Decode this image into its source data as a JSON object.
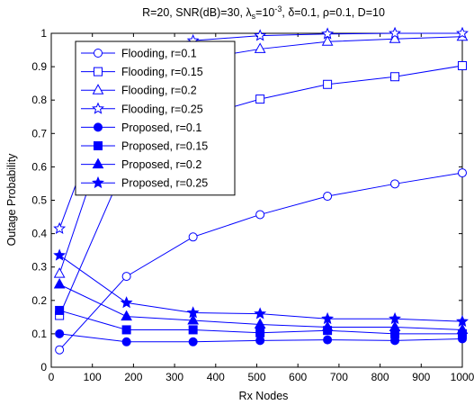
{
  "chart_data": {
    "type": "line",
    "title_parts": [
      "R=20, SNR(dB)=30, λ",
      "s",
      "=10",
      "-3",
      ", δ=0.1, ρ=0.1, D=10"
    ],
    "xlabel": "Rx Nodes",
    "ylabel": "Outage Probability",
    "xlim": [
      0,
      1000
    ],
    "ylim": [
      0,
      1
    ],
    "xticks": [
      0,
      100,
      200,
      300,
      400,
      500,
      600,
      700,
      800,
      900,
      1000
    ],
    "yticks": [
      0,
      0.1,
      0.2,
      0.3,
      0.4,
      0.5,
      0.6,
      0.7,
      0.8,
      0.9,
      1
    ],
    "grid": false,
    "legend_position": "top-left",
    "line_color": "#0000ff",
    "x": [
      20,
      183,
      345,
      508,
      672,
      836,
      1000
    ],
    "series": [
      {
        "name": "Flooding, r=0.1",
        "marker": "circle-open",
        "values": [
          0.052,
          0.272,
          0.39,
          0.457,
          0.512,
          0.549,
          0.582
        ]
      },
      {
        "name": "Flooding, r=0.15",
        "marker": "square-open",
        "values": [
          0.155,
          0.615,
          0.745,
          0.803,
          0.847,
          0.87,
          0.903
        ]
      },
      {
        "name": "Flooding, r=0.2",
        "marker": "triangle-open",
        "values": [
          0.28,
          0.875,
          0.92,
          0.953,
          0.975,
          0.983,
          0.99
        ]
      },
      {
        "name": "Flooding, r=0.25",
        "marker": "star-open",
        "values": [
          0.415,
          0.955,
          0.978,
          0.993,
          0.998,
          1.0,
          1.0
        ]
      },
      {
        "name": "Proposed, r=0.1",
        "marker": "circle-filled",
        "values": [
          0.1,
          0.076,
          0.076,
          0.08,
          0.082,
          0.08,
          0.085
        ]
      },
      {
        "name": "Proposed, r=0.15",
        "marker": "square-filled",
        "values": [
          0.17,
          0.112,
          0.112,
          0.103,
          0.11,
          0.1,
          0.1
        ]
      },
      {
        "name": "Proposed, r=0.2",
        "marker": "triangle-filled",
        "values": [
          0.248,
          0.152,
          0.14,
          0.128,
          0.12,
          0.12,
          0.112
        ]
      },
      {
        "name": "Proposed, r=0.25",
        "marker": "star-filled",
        "values": [
          0.335,
          0.193,
          0.163,
          0.16,
          0.145,
          0.145,
          0.137
        ]
      }
    ]
  }
}
